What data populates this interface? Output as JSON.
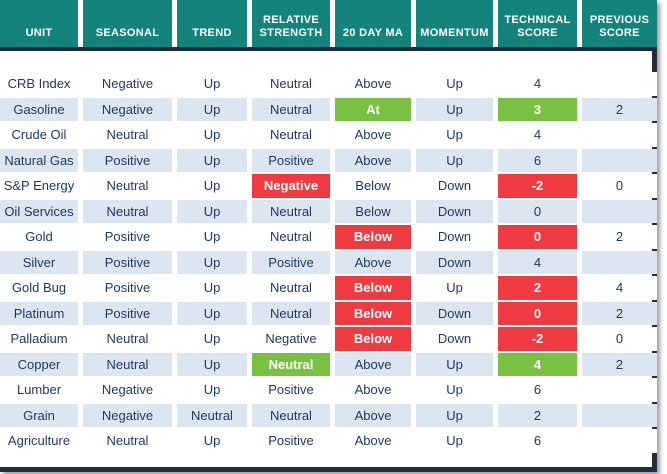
{
  "colors": {
    "header_bg": "#13837c",
    "header_text": "#ffffff",
    "header_underline": "#1e2b3a",
    "row_alt_bg": "#dce6f1",
    "row_bg": "#ffffff",
    "text": "#1f3864",
    "highlight_green": "#7ac143",
    "highlight_red": "#ee3a41",
    "frame_border": "#212d3a"
  },
  "columns": [
    {
      "key": "unit",
      "label": "UNIT"
    },
    {
      "key": "seasonal",
      "label": "SEASONAL"
    },
    {
      "key": "trend",
      "label": "TREND"
    },
    {
      "key": "relative_strength",
      "label": "RELATIVE STRENGTH"
    },
    {
      "key": "ma_20day",
      "label": "20 DAY MA"
    },
    {
      "key": "momentum",
      "label": "MOMENTUM"
    },
    {
      "key": "technical_score",
      "label": "TECHNICAL SCORE"
    },
    {
      "key": "previous_score",
      "label": "PREVIOUS SCORE"
    }
  ],
  "rows": [
    {
      "unit": "CRB Index",
      "seasonal": "Negative",
      "trend": "Up",
      "relative_strength": "Neutral",
      "ma_20day": "Above",
      "momentum": "Up",
      "technical_score": "4",
      "previous_score": "",
      "highlights": {}
    },
    {
      "unit": "Gasoline",
      "seasonal": "Negative",
      "trend": "Up",
      "relative_strength": "Neutral",
      "ma_20day": "At",
      "momentum": "Up",
      "technical_score": "3",
      "previous_score": "2",
      "highlights": {
        "ma_20day": "green",
        "technical_score": "green"
      }
    },
    {
      "unit": "Crude Oil",
      "seasonal": "Neutral",
      "trend": "Up",
      "relative_strength": "Neutral",
      "ma_20day": "Above",
      "momentum": "Up",
      "technical_score": "4",
      "previous_score": "",
      "highlights": {}
    },
    {
      "unit": "Natural Gas",
      "seasonal": "Positive",
      "trend": "Up",
      "relative_strength": "Positive",
      "ma_20day": "Above",
      "momentum": "Up",
      "technical_score": "6",
      "previous_score": "",
      "highlights": {}
    },
    {
      "unit": "S&P Energy",
      "seasonal": "Neutral",
      "trend": "Up",
      "relative_strength": "Negative",
      "ma_20day": "Below",
      "momentum": "Down",
      "technical_score": "-2",
      "previous_score": "0",
      "highlights": {
        "relative_strength": "red",
        "technical_score": "red"
      }
    },
    {
      "unit": "Oil Services",
      "seasonal": "Neutral",
      "trend": "Up",
      "relative_strength": "Neutral",
      "ma_20day": "Below",
      "momentum": "Down",
      "technical_score": "0",
      "previous_score": "",
      "highlights": {}
    },
    {
      "unit": "Gold",
      "seasonal": "Positive",
      "trend": "Up",
      "relative_strength": "Neutral",
      "ma_20day": "Below",
      "momentum": "Down",
      "technical_score": "0",
      "previous_score": "2",
      "highlights": {
        "ma_20day": "red",
        "technical_score": "red"
      }
    },
    {
      "unit": "Silver",
      "seasonal": "Positive",
      "trend": "Up",
      "relative_strength": "Positive",
      "ma_20day": "Above",
      "momentum": "Down",
      "technical_score": "4",
      "previous_score": "",
      "highlights": {}
    },
    {
      "unit": "Gold Bug",
      "seasonal": "Positive",
      "trend": "Up",
      "relative_strength": "Neutral",
      "ma_20day": "Below",
      "momentum": "Up",
      "technical_score": "2",
      "previous_score": "4",
      "highlights": {
        "ma_20day": "red",
        "technical_score": "red"
      }
    },
    {
      "unit": "Platinum",
      "seasonal": "Positive",
      "trend": "Up",
      "relative_strength": "Neutral",
      "ma_20day": "Below",
      "momentum": "Down",
      "technical_score": "0",
      "previous_score": "2",
      "highlights": {
        "ma_20day": "red",
        "technical_score": "red"
      }
    },
    {
      "unit": "Palladium",
      "seasonal": "Neutral",
      "trend": "Up",
      "relative_strength": "Negative",
      "ma_20day": "Below",
      "momentum": "Down",
      "technical_score": "-2",
      "previous_score": "0",
      "highlights": {
        "ma_20day": "red",
        "technical_score": "red"
      }
    },
    {
      "unit": "Copper",
      "seasonal": "Neutral",
      "trend": "Up",
      "relative_strength": "Neutral",
      "ma_20day": "Above",
      "momentum": "Up",
      "technical_score": "4",
      "previous_score": "2",
      "highlights": {
        "relative_strength": "green",
        "technical_score": "green"
      }
    },
    {
      "unit": "Lumber",
      "seasonal": "Negative",
      "trend": "Up",
      "relative_strength": "Positive",
      "ma_20day": "Above",
      "momentum": "Up",
      "technical_score": "6",
      "previous_score": "",
      "highlights": {}
    },
    {
      "unit": "Grain",
      "seasonal": "Negative",
      "trend": "Neutral",
      "relative_strength": "Neutral",
      "ma_20day": "Above",
      "momentum": "Up",
      "technical_score": "2",
      "previous_score": "",
      "highlights": {}
    },
    {
      "unit": "Agriculture",
      "seasonal": "Neutral",
      "trend": "Up",
      "relative_strength": "Positive",
      "ma_20day": "Above",
      "momentum": "Up",
      "technical_score": "6",
      "previous_score": "",
      "highlights": {}
    }
  ]
}
